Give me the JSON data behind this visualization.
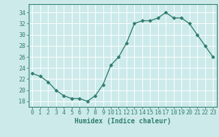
{
  "x": [
    0,
    1,
    2,
    3,
    4,
    5,
    6,
    7,
    8,
    9,
    10,
    11,
    12,
    13,
    14,
    15,
    16,
    17,
    18,
    19,
    20,
    21,
    22,
    23
  ],
  "y": [
    23,
    22.5,
    21.5,
    20,
    19,
    18.5,
    18.5,
    18,
    19,
    21,
    24.5,
    26,
    28.5,
    32,
    32.5,
    32.5,
    33,
    34,
    33,
    33,
    32,
    30,
    28,
    26
  ],
  "line_color": "#2e7d6e",
  "marker": "D",
  "marker_size": 2.5,
  "bg_color": "#cdeaea",
  "grid_color": "#b8d8d8",
  "xlabel": "Humidex (Indice chaleur)",
  "xlabel_fontsize": 7,
  "ylabel_ticks": [
    18,
    20,
    22,
    24,
    26,
    28,
    30,
    32,
    34
  ],
  "xticks": [
    0,
    1,
    2,
    3,
    4,
    5,
    6,
    7,
    8,
    9,
    10,
    11,
    12,
    13,
    14,
    15,
    16,
    17,
    18,
    19,
    20,
    21,
    22,
    23
  ],
  "ylim": [
    17.0,
    35.5
  ],
  "xlim": [
    -0.5,
    23.5
  ],
  "tick_label_fontsize": 6,
  "line_width": 1.0
}
